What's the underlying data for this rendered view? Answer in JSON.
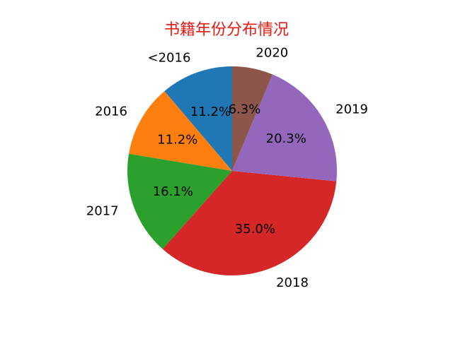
{
  "chart_data": {
    "type": "pie",
    "title": "书籍年份分布情况",
    "title_color": "#e8190e",
    "start_angle_deg": 90,
    "direction": "counterclockwise",
    "slices": [
      {
        "label": "<2016",
        "value": 11.2,
        "pct_label": "11.2%",
        "color": "#1f77b4"
      },
      {
        "label": "2016",
        "value": 11.2,
        "pct_label": "11.2%",
        "color": "#ff7f0e"
      },
      {
        "label": "2017",
        "value": 16.1,
        "pct_label": "16.1%",
        "color": "#2ca02c"
      },
      {
        "label": "2018",
        "value": 35.0,
        "pct_label": "35.0%",
        "color": "#d62728"
      },
      {
        "label": "2019",
        "value": 20.3,
        "pct_label": "20.3%",
        "color": "#9467bd"
      },
      {
        "label": "2020",
        "value": 6.3,
        "pct_label": "6.3%",
        "color": "#8c564b"
      }
    ]
  }
}
